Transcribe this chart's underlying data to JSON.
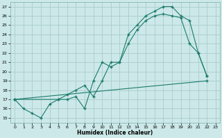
{
  "xlabel": "Humidex (Indice chaleur)",
  "background_color": "#cce8e8",
  "grid_color": "#aacccc",
  "line_color": "#1a7a6a",
  "xlim": [
    -0.5,
    23.5
  ],
  "ylim": [
    14.5,
    27.5
  ],
  "xticks": [
    0,
    1,
    2,
    3,
    4,
    5,
    6,
    7,
    8,
    9,
    10,
    11,
    12,
    13,
    14,
    15,
    16,
    17,
    18,
    19,
    20,
    21,
    22,
    23
  ],
  "yticks": [
    15,
    16,
    17,
    18,
    19,
    20,
    21,
    22,
    23,
    24,
    25,
    26,
    27
  ],
  "line1_x": [
    0,
    1,
    2,
    3,
    4,
    5,
    6,
    7,
    8,
    9,
    10,
    11,
    12,
    13,
    14,
    15,
    16,
    17,
    18,
    19,
    20,
    21,
    22
  ],
  "line1_y": [
    17,
    16,
    15.5,
    15,
    16.5,
    17,
    17,
    17.3,
    16,
    19,
    21,
    20.5,
    21,
    24,
    25,
    26,
    26.5,
    27,
    27,
    26,
    25.5,
    22,
    19.5
  ],
  "line2_x": [
    0,
    5,
    6,
    7,
    8,
    9,
    10,
    11,
    12,
    13,
    14,
    15,
    16,
    17,
    18,
    19,
    20,
    21,
    22
  ],
  "line2_y": [
    17,
    17,
    17.5,
    18,
    18.5,
    17.3,
    19,
    21,
    21,
    23,
    24.5,
    25.5,
    26,
    26.2,
    26,
    25.8,
    23,
    22,
    19.5
  ],
  "line3_x": [
    0,
    22
  ],
  "line3_y": [
    17,
    19
  ]
}
